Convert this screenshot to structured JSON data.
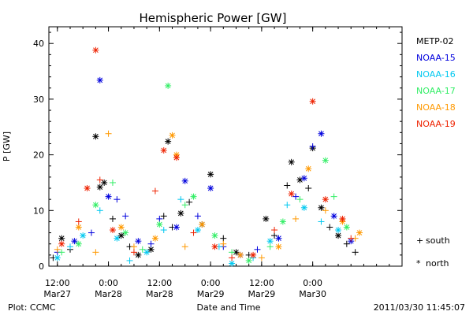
{
  "chart_data": {
    "type": "scatter",
    "title": "Hemispheric Power [GW]",
    "ylabel": "P [GW]",
    "xlabel": "Date and Time",
    "ylim": [
      0,
      43
    ],
    "xlim": [
      "2011-03-27T10:00",
      "2011-03-30T21:00"
    ],
    "yticks": [
      0,
      10,
      20,
      30,
      40
    ],
    "xticks": [
      {
        "t": "2011-03-27T12:00",
        "l1": "12:00",
        "l2": "Mar27"
      },
      {
        "t": "2011-03-28T00:00",
        "l1": "0:00",
        "l2": "Mar28"
      },
      {
        "t": "2011-03-28T12:00",
        "l1": "12:00",
        "l2": "Mar28"
      },
      {
        "t": "2011-03-29T00:00",
        "l1": "0:00",
        "l2": "Mar29"
      },
      {
        "t": "2011-03-29T12:00",
        "l1": "12:00",
        "l2": "Mar29"
      },
      {
        "t": "2011-03-30T00:00",
        "l1": "0:00",
        "l2": "Mar30"
      }
    ],
    "legend_position": "right",
    "series": [
      {
        "name": "METP-02",
        "color": "#000000",
        "points": [
          {
            "x": "2011-03-27T11:00",
            "y": 1.5,
            "m": "south"
          },
          {
            "x": "2011-03-27T13:00",
            "y": 5.0,
            "m": "north"
          },
          {
            "x": "2011-03-27T15:00",
            "y": 3.0,
            "m": "south"
          },
          {
            "x": "2011-03-27T21:00",
            "y": 23.3,
            "m": "north"
          },
          {
            "x": "2011-03-27T22:00",
            "y": 14.2,
            "m": "north"
          },
          {
            "x": "2011-03-27T23:00",
            "y": 15.0,
            "m": "north"
          },
          {
            "x": "2011-03-28T01:00",
            "y": 8.5,
            "m": "south"
          },
          {
            "x": "2011-03-28T03:00",
            "y": 5.5,
            "m": "north"
          },
          {
            "x": "2011-03-28T05:00",
            "y": 3.5,
            "m": "south"
          },
          {
            "x": "2011-03-28T07:00",
            "y": 2.0,
            "m": "north"
          },
          {
            "x": "2011-03-28T10:00",
            "y": 3.0,
            "m": "north"
          },
          {
            "x": "2011-03-28T13:00",
            "y": 9.0,
            "m": "south"
          },
          {
            "x": "2011-03-28T14:00",
            "y": 22.4,
            "m": "north"
          },
          {
            "x": "2011-03-28T15:00",
            "y": 7.0,
            "m": "south"
          },
          {
            "x": "2011-03-28T17:00",
            "y": 9.5,
            "m": "north"
          },
          {
            "x": "2011-03-28T19:00",
            "y": 11.5,
            "m": "south"
          },
          {
            "x": "2011-03-28T22:00",
            "y": 7.5,
            "m": "north"
          },
          {
            "x": "2011-03-29T00:00",
            "y": 16.5,
            "m": "north"
          },
          {
            "x": "2011-03-29T03:00",
            "y": 5.0,
            "m": "south"
          },
          {
            "x": "2011-03-29T06:00",
            "y": 2.5,
            "m": "north"
          },
          {
            "x": "2011-03-29T09:00",
            "y": 2.0,
            "m": "south"
          },
          {
            "x": "2011-03-29T13:00",
            "y": 8.5,
            "m": "north"
          },
          {
            "x": "2011-03-29T15:00",
            "y": 5.5,
            "m": "south"
          },
          {
            "x": "2011-03-29T18:00",
            "y": 14.5,
            "m": "south"
          },
          {
            "x": "2011-03-29T19:00",
            "y": 18.7,
            "m": "north"
          },
          {
            "x": "2011-03-29T21:00",
            "y": 15.5,
            "m": "north"
          },
          {
            "x": "2011-03-29T23:00",
            "y": 14.0,
            "m": "south"
          },
          {
            "x": "2011-03-30T00:00",
            "y": 21.2,
            "m": "north"
          },
          {
            "x": "2011-03-30T02:00",
            "y": 10.5,
            "m": "north"
          },
          {
            "x": "2011-03-30T04:00",
            "y": 7.0,
            "m": "south"
          },
          {
            "x": "2011-03-30T06:00",
            "y": 5.5,
            "m": "north"
          },
          {
            "x": "2011-03-30T08:00",
            "y": 4.0,
            "m": "south"
          },
          {
            "x": "2011-03-30T10:00",
            "y": 2.5,
            "m": "south"
          }
        ]
      },
      {
        "name": "NOAA-15",
        "color": "#0000dd",
        "points": [
          {
            "x": "2011-03-27T12:00",
            "y": 2.5,
            "m": "south"
          },
          {
            "x": "2011-03-27T16:00",
            "y": 4.5,
            "m": "north"
          },
          {
            "x": "2011-03-27T20:00",
            "y": 6.0,
            "m": "south"
          },
          {
            "x": "2011-03-27T22:00",
            "y": 33.4,
            "m": "north"
          },
          {
            "x": "2011-03-28T00:00",
            "y": 12.5,
            "m": "north"
          },
          {
            "x": "2011-03-28T02:00",
            "y": 12.0,
            "m": "south"
          },
          {
            "x": "2011-03-28T04:00",
            "y": 9.0,
            "m": "south"
          },
          {
            "x": "2011-03-28T07:00",
            "y": 4.5,
            "m": "north"
          },
          {
            "x": "2011-03-28T10:00",
            "y": 4.0,
            "m": "south"
          },
          {
            "x": "2011-03-28T12:00",
            "y": 8.5,
            "m": "south"
          },
          {
            "x": "2011-03-28T16:00",
            "y": 7.0,
            "m": "north"
          },
          {
            "x": "2011-03-28T18:00",
            "y": 15.3,
            "m": "north"
          },
          {
            "x": "2011-03-28T21:00",
            "y": 9.0,
            "m": "south"
          },
          {
            "x": "2011-03-29T00:00",
            "y": 14.0,
            "m": "north"
          },
          {
            "x": "2011-03-29T03:00",
            "y": 3.5,
            "m": "south"
          },
          {
            "x": "2011-03-29T07:00",
            "y": 2.0,
            "m": "north"
          },
          {
            "x": "2011-03-29T11:00",
            "y": 3.0,
            "m": "south"
          },
          {
            "x": "2011-03-29T16:00",
            "y": 5.0,
            "m": "north"
          },
          {
            "x": "2011-03-29T20:00",
            "y": 12.5,
            "m": "south"
          },
          {
            "x": "2011-03-29T22:00",
            "y": 15.8,
            "m": "north"
          },
          {
            "x": "2011-03-30T00:00",
            "y": 21.5,
            "m": "south"
          },
          {
            "x": "2011-03-30T02:00",
            "y": 23.8,
            "m": "north"
          },
          {
            "x": "2011-03-30T05:00",
            "y": 9.0,
            "m": "north"
          },
          {
            "x": "2011-03-30T09:00",
            "y": 4.5,
            "m": "north"
          }
        ]
      },
      {
        "name": "NOAA-16",
        "color": "#00c8f0",
        "points": [
          {
            "x": "2011-03-27T12:00",
            "y": 1.5,
            "m": "north"
          },
          {
            "x": "2011-03-27T15:00",
            "y": 3.5,
            "m": "south"
          },
          {
            "x": "2011-03-27T18:00",
            "y": 5.5,
            "m": "north"
          },
          {
            "x": "2011-03-27T22:00",
            "y": 10.0,
            "m": "south"
          },
          {
            "x": "2011-03-28T02:00",
            "y": 5.0,
            "m": "north"
          },
          {
            "x": "2011-03-28T05:00",
            "y": 1.0,
            "m": "south"
          },
          {
            "x": "2011-03-28T09:00",
            "y": 2.5,
            "m": "north"
          },
          {
            "x": "2011-03-28T13:00",
            "y": 6.5,
            "m": "south"
          },
          {
            "x": "2011-03-28T17:00",
            "y": 12.0,
            "m": "south"
          },
          {
            "x": "2011-03-28T21:00",
            "y": 6.5,
            "m": "north"
          },
          {
            "x": "2011-03-29T02:00",
            "y": 3.5,
            "m": "south"
          },
          {
            "x": "2011-03-29T05:00",
            "y": 0.5,
            "m": "north"
          },
          {
            "x": "2011-03-29T10:00",
            "y": 1.5,
            "m": "south"
          },
          {
            "x": "2011-03-29T14:00",
            "y": 4.5,
            "m": "north"
          },
          {
            "x": "2011-03-29T18:00",
            "y": 11.0,
            "m": "south"
          },
          {
            "x": "2011-03-29T22:00",
            "y": 10.5,
            "m": "north"
          },
          {
            "x": "2011-03-30T02:00",
            "y": 8.0,
            "m": "south"
          },
          {
            "x": "2011-03-30T06:00",
            "y": 6.5,
            "m": "north"
          }
        ]
      },
      {
        "name": "NOAA-17",
        "color": "#33ee66",
        "points": [
          {
            "x": "2011-03-27T13:00",
            "y": 2.5,
            "m": "south"
          },
          {
            "x": "2011-03-27T17:00",
            "y": 4.0,
            "m": "north"
          },
          {
            "x": "2011-03-27T21:00",
            "y": 11.0,
            "m": "north"
          },
          {
            "x": "2011-03-28T01:00",
            "y": 15.0,
            "m": "south"
          },
          {
            "x": "2011-03-28T04:00",
            "y": 6.0,
            "m": "north"
          },
          {
            "x": "2011-03-28T08:00",
            "y": 3.0,
            "m": "south"
          },
          {
            "x": "2011-03-28T12:00",
            "y": 7.5,
            "m": "north"
          },
          {
            "x": "2011-03-28T14:00",
            "y": 32.4,
            "m": "north"
          },
          {
            "x": "2011-03-28T18:00",
            "y": 11.0,
            "m": "south"
          },
          {
            "x": "2011-03-28T20:00",
            "y": 12.5,
            "m": "north"
          },
          {
            "x": "2011-03-29T01:00",
            "y": 5.5,
            "m": "north"
          },
          {
            "x": "2011-03-29T05:00",
            "y": 2.5,
            "m": "south"
          },
          {
            "x": "2011-03-29T09:00",
            "y": 1.0,
            "m": "north"
          },
          {
            "x": "2011-03-29T14:00",
            "y": 3.5,
            "m": "south"
          },
          {
            "x": "2011-03-29T17:00",
            "y": 8.0,
            "m": "north"
          },
          {
            "x": "2011-03-29T21:00",
            "y": 12.0,
            "m": "south"
          },
          {
            "x": "2011-03-30T03:00",
            "y": 19.0,
            "m": "north"
          },
          {
            "x": "2011-03-30T05:00",
            "y": 12.5,
            "m": "south"
          },
          {
            "x": "2011-03-30T08:00",
            "y": 7.0,
            "m": "north"
          }
        ]
      },
      {
        "name": "NOAA-18",
        "color": "#ff9900",
        "points": [
          {
            "x": "2011-03-27T12:00",
            "y": 3.0,
            "m": "south"
          },
          {
            "x": "2011-03-27T17:00",
            "y": 7.0,
            "m": "north"
          },
          {
            "x": "2011-03-27T21:00",
            "y": 2.5,
            "m": "south"
          },
          {
            "x": "2011-03-28T00:00",
            "y": 23.8,
            "m": "south"
          },
          {
            "x": "2011-03-28T03:00",
            "y": 7.0,
            "m": "north"
          },
          {
            "x": "2011-03-28T06:00",
            "y": 3.5,
            "m": "south"
          },
          {
            "x": "2011-03-28T11:00",
            "y": 5.0,
            "m": "north"
          },
          {
            "x": "2011-03-28T15:00",
            "y": 23.5,
            "m": "north"
          },
          {
            "x": "2011-03-28T16:00",
            "y": 20.0,
            "m": "north"
          },
          {
            "x": "2011-03-28T18:00",
            "y": 3.5,
            "m": "south"
          },
          {
            "x": "2011-03-28T22:00",
            "y": 7.5,
            "m": "north"
          },
          {
            "x": "2011-03-29T03:00",
            "y": 4.0,
            "m": "south"
          },
          {
            "x": "2011-03-29T07:00",
            "y": 2.0,
            "m": "north"
          },
          {
            "x": "2011-03-29T12:00",
            "y": 1.5,
            "m": "south"
          },
          {
            "x": "2011-03-29T16:00",
            "y": 3.5,
            "m": "north"
          },
          {
            "x": "2011-03-29T20:00",
            "y": 8.5,
            "m": "south"
          },
          {
            "x": "2011-03-29T23:00",
            "y": 17.5,
            "m": "north"
          },
          {
            "x": "2011-03-30T03:00",
            "y": 10.0,
            "m": "south"
          },
          {
            "x": "2011-03-30T07:00",
            "y": 8.0,
            "m": "north"
          },
          {
            "x": "2011-03-30T10:00",
            "y": 5.0,
            "m": "south"
          },
          {
            "x": "2011-03-30T11:00",
            "y": 6.0,
            "m": "north"
          }
        ]
      },
      {
        "name": "NOAA-19",
        "color": "#ee2200",
        "points": [
          {
            "x": "2011-03-27T13:00",
            "y": 4.0,
            "m": "north"
          },
          {
            "x": "2011-03-27T17:00",
            "y": 8.0,
            "m": "south"
          },
          {
            "x": "2011-03-27T19:00",
            "y": 14.0,
            "m": "north"
          },
          {
            "x": "2011-03-27T21:00",
            "y": 38.8,
            "m": "north"
          },
          {
            "x": "2011-03-27T22:00",
            "y": 15.5,
            "m": "south"
          },
          {
            "x": "2011-03-28T01:00",
            "y": 6.5,
            "m": "north"
          },
          {
            "x": "2011-03-28T06:00",
            "y": 2.5,
            "m": "south"
          },
          {
            "x": "2011-03-28T11:00",
            "y": 13.5,
            "m": "south"
          },
          {
            "x": "2011-03-28T13:00",
            "y": 20.8,
            "m": "north"
          },
          {
            "x": "2011-03-28T16:00",
            "y": 19.5,
            "m": "north"
          },
          {
            "x": "2011-03-28T20:00",
            "y": 6.0,
            "m": "south"
          },
          {
            "x": "2011-03-29T01:00",
            "y": 3.5,
            "m": "north"
          },
          {
            "x": "2011-03-29T05:00",
            "y": 1.5,
            "m": "south"
          },
          {
            "x": "2011-03-29T10:00",
            "y": 2.0,
            "m": "north"
          },
          {
            "x": "2011-03-29T15:00",
            "y": 6.5,
            "m": "south"
          },
          {
            "x": "2011-03-29T19:00",
            "y": 13.0,
            "m": "north"
          },
          {
            "x": "2011-03-30T00:00",
            "y": 29.6,
            "m": "north"
          },
          {
            "x": "2011-03-30T03:00",
            "y": 12.0,
            "m": "north"
          },
          {
            "x": "2011-03-30T07:00",
            "y": 8.5,
            "m": "north"
          },
          {
            "x": "2011-03-30T09:00",
            "y": 5.0,
            "m": "south"
          }
        ]
      }
    ],
    "marker_legend": [
      {
        "symbol": "+",
        "label": "south"
      },
      {
        "symbol": "*",
        "label": "north"
      }
    ]
  },
  "footer": {
    "left": "Plot: CCMC",
    "right": "2011/03/30 11:45:07"
  }
}
